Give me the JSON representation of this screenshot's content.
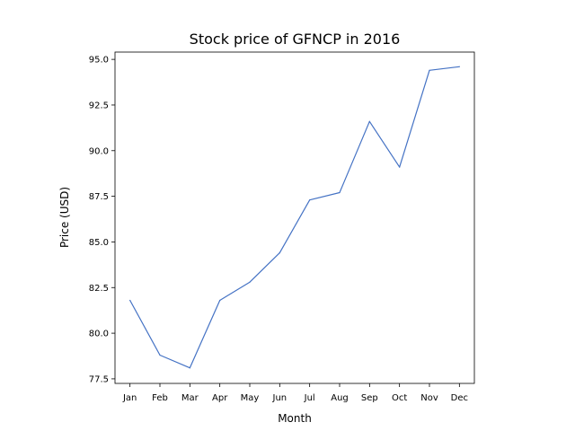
{
  "chart_data": {
    "type": "line",
    "title": "Stock price of GFNCP in 2016",
    "xlabel": "Month",
    "ylabel": "Price (USD)",
    "categories": [
      "Jan",
      "Feb",
      "Mar",
      "Apr",
      "May",
      "Jun",
      "Jul",
      "Aug",
      "Sep",
      "Oct",
      "Nov",
      "Dec"
    ],
    "series": [
      {
        "values": [
          81.8,
          78.8,
          78.1,
          81.8,
          82.8,
          84.4,
          87.3,
          87.7,
          91.6,
          89.1,
          94.4,
          94.6
        ],
        "color": "#4472c4"
      }
    ],
    "ylim": [
      77.25,
      95.4
    ],
    "yticks": [
      "77.5",
      "80.0",
      "82.5",
      "85.0",
      "87.5",
      "90.0",
      "92.5",
      "95.0"
    ],
    "grid": false,
    "legend": "none"
  }
}
